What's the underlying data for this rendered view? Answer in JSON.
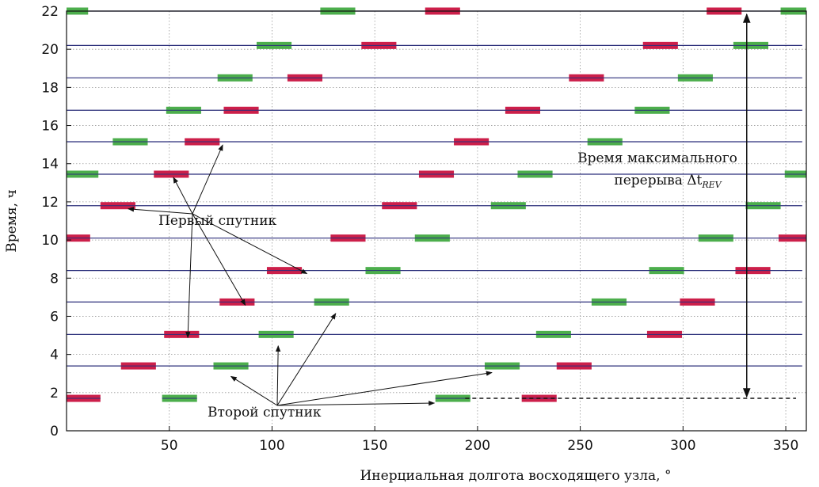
{
  "chart_data": {
    "type": "scatter",
    "title": "",
    "xlabel": "Инерциальная долгота восходящего узла, °",
    "ylabel": "Время, ч",
    "xlim": [
      0,
      360
    ],
    "ylim": [
      0,
      22
    ],
    "xticks": [
      50,
      100,
      150,
      200,
      250,
      300,
      350
    ],
    "yticks": [
      0,
      2,
      4,
      6,
      8,
      10,
      12,
      14,
      16,
      18,
      20,
      22
    ],
    "grid": true,
    "marker_half_width_deg": 8.5,
    "orbit_lines": [
      {
        "y": 22.0,
        "segments": [
          [
            0,
            358
          ]
        ]
      },
      {
        "y": 20.2,
        "segments": [
          [
            0,
            358
          ]
        ]
      },
      {
        "y": 18.5,
        "segments": [
          [
            0,
            358
          ]
        ]
      },
      {
        "y": 16.8,
        "segments": [
          [
            0,
            358
          ]
        ]
      },
      {
        "y": 15.15,
        "segments": [
          [
            0,
            358
          ]
        ]
      },
      {
        "y": 13.45,
        "segments": [
          [
            0,
            358
          ]
        ]
      },
      {
        "y": 11.8,
        "segments": [
          [
            0,
            358
          ]
        ]
      },
      {
        "y": 10.1,
        "segments": [
          [
            0,
            358
          ]
        ]
      },
      {
        "y": 8.4,
        "segments": [
          [
            0,
            358
          ]
        ]
      },
      {
        "y": 6.75,
        "segments": [
          [
            0,
            358
          ]
        ]
      },
      {
        "y": 5.05,
        "segments": [
          [
            0,
            358
          ]
        ]
      },
      {
        "y": 3.4,
        "segments": [
          [
            0,
            358
          ]
        ]
      },
      {
        "y": 1.7,
        "segments": []
      }
    ],
    "series": [
      {
        "name": "Первый спутник",
        "color": "#cc1f4a",
        "points": [
          {
            "x": 183,
            "y": 22.0
          },
          {
            "x": 320,
            "y": 22.0
          },
          {
            "x": 152,
            "y": 20.2
          },
          {
            "x": 289,
            "y": 20.2
          },
          {
            "x": 116,
            "y": 18.5
          },
          {
            "x": 253,
            "y": 18.5
          },
          {
            "x": 85,
            "y": 16.8
          },
          {
            "x": 222,
            "y": 16.8
          },
          {
            "x": 66,
            "y": 15.15
          },
          {
            "x": 197,
            "y": 15.15
          },
          {
            "x": 51,
            "y": 13.45
          },
          {
            "x": 180,
            "y": 13.45
          },
          {
            "x": 25,
            "y": 11.8
          },
          {
            "x": 162,
            "y": 11.8
          },
          {
            "x": 3,
            "y": 10.1
          },
          {
            "x": 137,
            "y": 10.1
          },
          {
            "x": 355,
            "y": 10.1
          },
          {
            "x": 106,
            "y": 8.4
          },
          {
            "x": 334,
            "y": 8.4
          },
          {
            "x": 83,
            "y": 6.75
          },
          {
            "x": 307,
            "y": 6.75
          },
          {
            "x": 56,
            "y": 5.05
          },
          {
            "x": 291,
            "y": 5.05
          },
          {
            "x": 35,
            "y": 3.4
          },
          {
            "x": 247,
            "y": 3.4
          },
          {
            "x": 8,
            "y": 1.7
          },
          {
            "x": 230,
            "y": 1.7
          }
        ]
      },
      {
        "name": "Второй спутник",
        "color": "#4cae4c",
        "points": [
          {
            "x": 2,
            "y": 22.0
          },
          {
            "x": 132,
            "y": 22.0
          },
          {
            "x": 356,
            "y": 22.0
          },
          {
            "x": 101,
            "y": 20.2
          },
          {
            "x": 333,
            "y": 20.2
          },
          {
            "x": 82,
            "y": 18.5
          },
          {
            "x": 306,
            "y": 18.5
          },
          {
            "x": 57,
            "y": 16.8
          },
          {
            "x": 285,
            "y": 16.8
          },
          {
            "x": 31,
            "y": 15.15
          },
          {
            "x": 262,
            "y": 15.15
          },
          {
            "x": 7,
            "y": 13.45
          },
          {
            "x": 228,
            "y": 13.45
          },
          {
            "x": 358,
            "y": 13.45
          },
          {
            "x": 215,
            "y": 11.8
          },
          {
            "x": 339,
            "y": 11.8
          },
          {
            "x": 178,
            "y": 10.1
          },
          {
            "x": 316,
            "y": 10.1
          },
          {
            "x": 154,
            "y": 8.4
          },
          {
            "x": 292,
            "y": 8.4
          },
          {
            "x": 129,
            "y": 6.75
          },
          {
            "x": 264,
            "y": 6.75
          },
          {
            "x": 102,
            "y": 5.05
          },
          {
            "x": 237,
            "y": 5.05
          },
          {
            "x": 80,
            "y": 3.4
          },
          {
            "x": 212,
            "y": 3.4
          },
          {
            "x": 55,
            "y": 1.7
          },
          {
            "x": 188,
            "y": 1.7
          }
        ]
      }
    ],
    "annotations": {
      "first_label": "Первый спутник",
      "second_label": "Второй спутник",
      "gap_label_line1": "Время максимального",
      "gap_label_line2": "перерыва Δt",
      "gap_label_sub": "REV",
      "gap_x": 331,
      "gap_y_bottom": 1.7,
      "gap_y_top": 22.0,
      "dashed_y": 1.7,
      "dashed_x_start": 194,
      "dashed_x_end": 355,
      "first_label_pos": [
        45,
        11.2
      ],
      "first_arrow_targets": [
        [
          30,
          11.8
        ],
        [
          52,
          13.45
        ],
        [
          76,
          15.15
        ],
        [
          117,
          8.4
        ],
        [
          87,
          6.75
        ],
        [
          59,
          5.05
        ]
      ],
      "second_label_pos": [
        68,
        0.9
      ],
      "second_arrow_targets": [
        [
          80,
          3.1
        ],
        [
          103,
          4.7
        ],
        [
          131,
          6.4
        ],
        [
          207,
          3.3
        ],
        [
          179,
          1.7
        ]
      ]
    }
  }
}
